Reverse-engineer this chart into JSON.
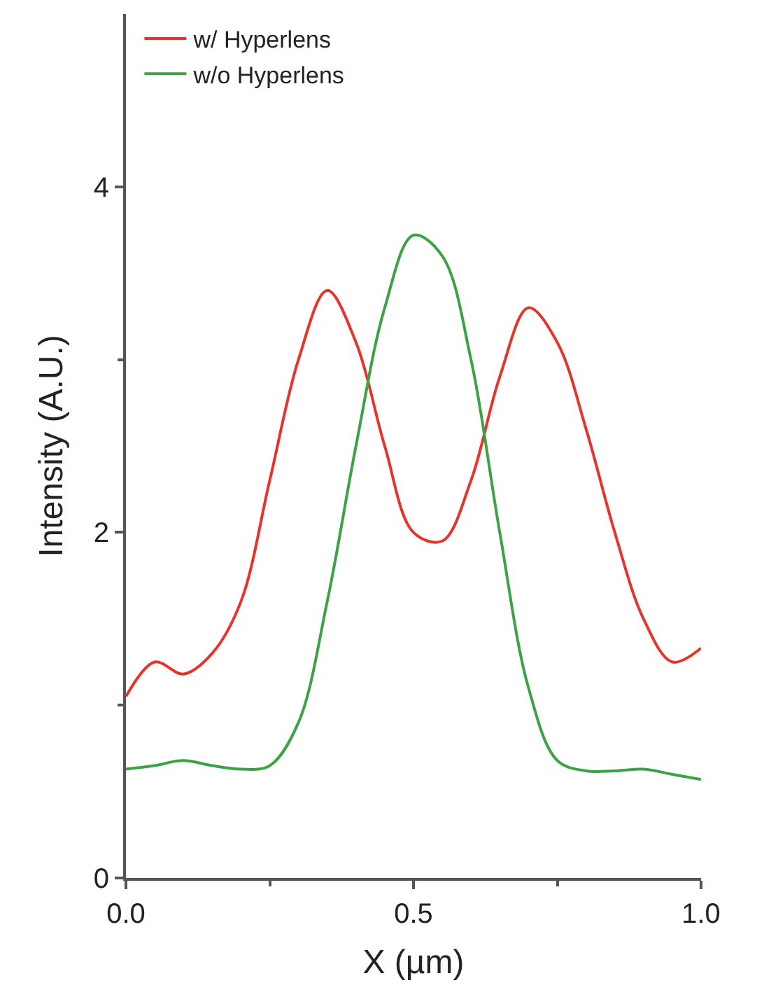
{
  "chart_data": {
    "type": "line",
    "xlabel": "X (µm)",
    "ylabel": "Intensity (A.U.)",
    "x": [
      0,
      0.05,
      0.1,
      0.15,
      0.2,
      0.25,
      0.3,
      0.35,
      0.4,
      0.45,
      0.5,
      0.55,
      0.6,
      0.65,
      0.7,
      0.75,
      0.8,
      0.85,
      0.9,
      0.95,
      1.0
    ],
    "series": [
      {
        "name": "w/ Hyperlens",
        "color": "#e8332b",
        "values": [
          1.05,
          1.25,
          1.18,
          1.3,
          1.6,
          2.3,
          3.0,
          3.4,
          3.1,
          2.5,
          2.0,
          1.95,
          2.3,
          2.9,
          3.3,
          3.1,
          2.6,
          2.0,
          1.5,
          1.25,
          1.33
        ]
      },
      {
        "name": "w/o Hyperlens",
        "color": "#3aa346",
        "values": [
          0.63,
          0.65,
          0.68,
          0.65,
          0.63,
          0.65,
          0.9,
          1.6,
          2.5,
          3.3,
          3.72,
          3.6,
          3.0,
          2.0,
          1.1,
          0.68,
          0.62,
          0.62,
          0.63,
          0.6,
          0.57
        ]
      }
    ],
    "xlim": [
      0,
      1
    ],
    "ylim": [
      0,
      5
    ],
    "xticks": [
      {
        "value": 0,
        "label": "0.0"
      },
      0.5,
      {
        "value": 1,
        "label": "1.0"
      }
    ],
    "yticks": [
      0,
      2,
      4
    ],
    "legend": "top left",
    "marker": "none",
    "line_style": "solid"
  }
}
